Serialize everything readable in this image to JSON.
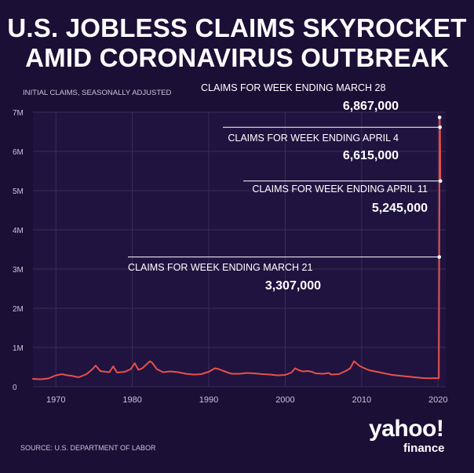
{
  "title_line1": "U.S. JOBLESS CLAIMS SKYROCKET",
  "title_line2": "AMID CORONAVIRUS OUTBREAK",
  "source": "SOURCE: U.S. DEPARTMENT OF LABOR",
  "logo": {
    "main": "yahoo!",
    "sub": "finance"
  },
  "colors": {
    "background": "#1c0f36",
    "line": "#e8504a",
    "grid": "#3a2d55",
    "text": "#ffffff",
    "muted": "#c9c3d6"
  },
  "chart_data": {
    "type": "line",
    "title": "U.S. JOBLESS CLAIMS SKYROCKET AMID CORONAVIRUS OUTBREAK",
    "ylabel": "INITIAL CLAIMS, SEASONALLY ADJUSTED",
    "xlabel": "",
    "xlim": [
      1967,
      2021
    ],
    "ylim": [
      0,
      7000000
    ],
    "grid": true,
    "x_ticks": [
      1970,
      1980,
      1990,
      2000,
      2010,
      2020
    ],
    "x_tick_labels": [
      "1970",
      "1980",
      "1990",
      "2000",
      "2010",
      "2020"
    ],
    "y_ticks": [
      0,
      1000000,
      2000000,
      3000000,
      4000000,
      5000000,
      6000000,
      7000000
    ],
    "y_tick_labels": [
      "0",
      "1M",
      "2M",
      "3M",
      "4M",
      "5M",
      "6M",
      "7M"
    ],
    "series": [
      {
        "x": [
          1967,
          1968,
          1969,
          1970,
          1970.8,
          1971.5,
          1972,
          1973,
          1974,
          1974.8,
          1975.2,
          1975.8,
          1976.5,
          1977,
          1977.5,
          1978,
          1979,
          1979.8,
          1980.3,
          1980.8,
          1981.3,
          1981.8,
          1982.3,
          1982.6,
          1983.2,
          1984,
          1985,
          1986,
          1987,
          1988,
          1989,
          1990,
          1990.8,
          1991.3,
          1991.8,
          1992.5,
          1993,
          1994,
          1995,
          1996,
          1997,
          1998,
          1999,
          2000,
          2000.8,
          2001.3,
          2001.8,
          2002.3,
          2003,
          2003.5,
          2004,
          2005,
          2005.7,
          2006,
          2007,
          2008,
          2008.5,
          2009,
          2009.3,
          2009.8,
          2010.5,
          2011,
          2012,
          2013,
          2014,
          2015,
          2016,
          2017,
          2018,
          2019,
          2020.1,
          2020.15,
          2020.2,
          2020.25,
          2020.3
        ],
        "y": [
          200000,
          190000,
          210000,
          290000,
          320000,
          290000,
          280000,
          240000,
          320000,
          450000,
          540000,
          400000,
          380000,
          370000,
          520000,
          360000,
          380000,
          450000,
          600000,
          430000,
          470000,
          560000,
          650000,
          610000,
          450000,
          370000,
          390000,
          370000,
          330000,
          310000,
          320000,
          380000,
          470000,
          450000,
          410000,
          360000,
          330000,
          330000,
          350000,
          340000,
          320000,
          310000,
          290000,
          300000,
          360000,
          470000,
          420000,
          390000,
          400000,
          380000,
          340000,
          330000,
          350000,
          310000,
          320000,
          410000,
          470000,
          650000,
          600000,
          520000,
          460000,
          420000,
          380000,
          340000,
          300000,
          280000,
          260000,
          240000,
          220000,
          215000,
          220000,
          3307000,
          6867000,
          6615000,
          5245000
        ]
      }
    ],
    "annotations": [
      {
        "label": "CLAIMS FOR WEEK ENDING MARCH 28",
        "value_text": "6,867,000",
        "x": 2020.2,
        "y": 6867000
      },
      {
        "label": "CLAIMS FOR WEEK ENDING APRIL 4",
        "value_text": "6,615,000",
        "x": 2020.25,
        "y": 6615000
      },
      {
        "label": "CLAIMS FOR WEEK ENDING APRIL 11",
        "value_text": "5,245,000",
        "x": 2020.3,
        "y": 5245000
      },
      {
        "label": "CLAIMS FOR WEEK ENDING MARCH 21",
        "value_text": "3,307,000",
        "x": 2020.15,
        "y": 3307000
      }
    ]
  }
}
